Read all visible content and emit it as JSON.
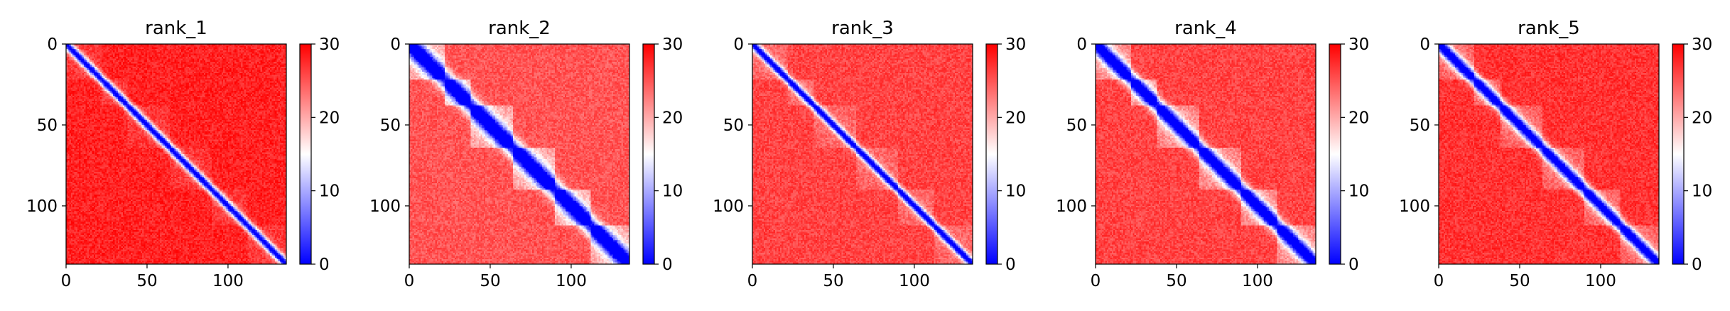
{
  "chart_data": [
    {
      "type": "heatmap",
      "title": "rank_1",
      "matrix_size": 136,
      "xlim": [
        0,
        136
      ],
      "ylim": [
        136,
        0
      ],
      "x_ticks": [
        0,
        50,
        100
      ],
      "y_ticks": [
        0,
        50,
        100
      ],
      "colorbar": {
        "vmin": 0,
        "vmax": 30,
        "ticks": [
          0,
          10,
          20,
          30
        ],
        "colormap": "bwr"
      },
      "pattern": {
        "diagonal_width": 2.6,
        "domain_strength": 0.15,
        "base_value": 28
      }
    },
    {
      "type": "heatmap",
      "title": "rank_2",
      "matrix_size": 136,
      "xlim": [
        0,
        136
      ],
      "ylim": [
        136,
        0
      ],
      "x_ticks": [
        0,
        50,
        100
      ],
      "y_ticks": [
        0,
        50,
        100
      ],
      "colorbar": {
        "vmin": 0,
        "vmax": 30,
        "ticks": [
          0,
          10,
          20,
          30
        ],
        "colormap": "bwr"
      },
      "pattern": {
        "diagonal_width": 5.0,
        "domain_strength": 0.75,
        "base_value": 25
      }
    },
    {
      "type": "heatmap",
      "title": "rank_3",
      "matrix_size": 136,
      "xlim": [
        0,
        136
      ],
      "ylim": [
        136,
        0
      ],
      "x_ticks": [
        0,
        50,
        100
      ],
      "y_ticks": [
        0,
        50,
        100
      ],
      "colorbar": {
        "vmin": 0,
        "vmax": 30,
        "ticks": [
          0,
          10,
          20,
          30
        ],
        "colormap": "bwr"
      },
      "pattern": {
        "diagonal_width": 2.4,
        "domain_strength": 0.25,
        "base_value": 26
      }
    },
    {
      "type": "heatmap",
      "title": "rank_4",
      "matrix_size": 136,
      "xlim": [
        0,
        136
      ],
      "ylim": [
        136,
        0
      ],
      "x_ticks": [
        0,
        50,
        100
      ],
      "y_ticks": [
        0,
        50,
        100
      ],
      "colorbar": {
        "vmin": 0,
        "vmax": 30,
        "ticks": [
          0,
          10,
          20,
          30
        ],
        "colormap": "bwr"
      },
      "pattern": {
        "diagonal_width": 4.2,
        "domain_strength": 0.6,
        "base_value": 26
      }
    },
    {
      "type": "heatmap",
      "title": "rank_5",
      "matrix_size": 136,
      "xlim": [
        0,
        136
      ],
      "ylim": [
        136,
        0
      ],
      "x_ticks": [
        0,
        50,
        100
      ],
      "y_ticks": [
        0,
        50,
        100
      ],
      "colorbar": {
        "vmin": 0,
        "vmax": 30,
        "ticks": [
          0,
          10,
          20,
          30
        ],
        "colormap": "bwr"
      },
      "pattern": {
        "diagonal_width": 3.6,
        "domain_strength": 0.4,
        "base_value": 27
      }
    }
  ]
}
